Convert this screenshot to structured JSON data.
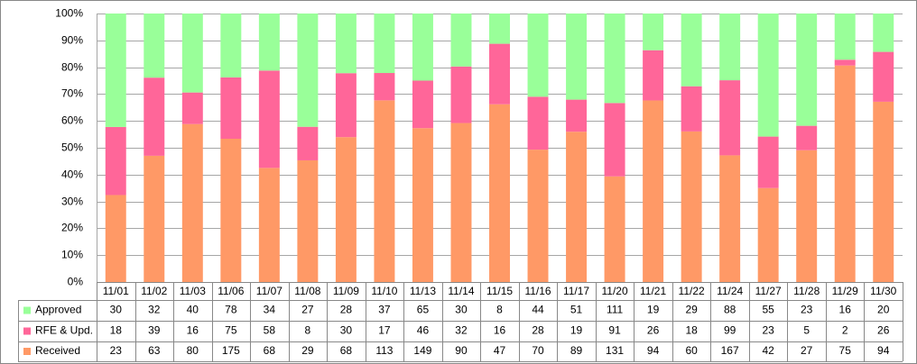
{
  "chart_data": {
    "type": "bar",
    "stacked": "percent",
    "categories": [
      "11/01",
      "11/02",
      "11/03",
      "11/06",
      "11/07",
      "11/08",
      "11/09",
      "11/10",
      "11/13",
      "11/14",
      "11/15",
      "11/16",
      "11/17",
      "11/20",
      "11/21",
      "11/22",
      "11/24",
      "11/27",
      "11/28",
      "11/29",
      "11/30"
    ],
    "series": [
      {
        "name": "Approved",
        "color": "#99ff99",
        "values": [
          30,
          32,
          40,
          78,
          34,
          27,
          28,
          37,
          65,
          30,
          8,
          44,
          51,
          111,
          19,
          29,
          88,
          55,
          23,
          16,
          20
        ]
      },
      {
        "name": "RFE & Upd.",
        "color": "#ff6699",
        "values": [
          18,
          39,
          16,
          75,
          58,
          8,
          30,
          17,
          46,
          32,
          16,
          28,
          19,
          91,
          26,
          18,
          99,
          23,
          5,
          2,
          26
        ]
      },
      {
        "name": "Received",
        "color": "#ff9966",
        "values": [
          23,
          63,
          80,
          175,
          68,
          29,
          68,
          113,
          149,
          90,
          47,
          70,
          89,
          131,
          94,
          60,
          167,
          42,
          27,
          75,
          94
        ]
      }
    ],
    "ylim": [
      0,
      100
    ],
    "yticks": [
      {
        "value": 0,
        "label": "0%"
      },
      {
        "value": 10,
        "label": "10%"
      },
      {
        "value": 20,
        "label": "20%"
      },
      {
        "value": 30,
        "label": "30%"
      },
      {
        "value": 40,
        "label": "40%"
      },
      {
        "value": 50,
        "label": "50%"
      },
      {
        "value": 60,
        "label": "60%"
      },
      {
        "value": 70,
        "label": "70%"
      },
      {
        "value": 80,
        "label": "80%"
      },
      {
        "value": 90,
        "label": "90%"
      },
      {
        "value": 100,
        "label": "100%"
      }
    ],
    "grid": true
  }
}
